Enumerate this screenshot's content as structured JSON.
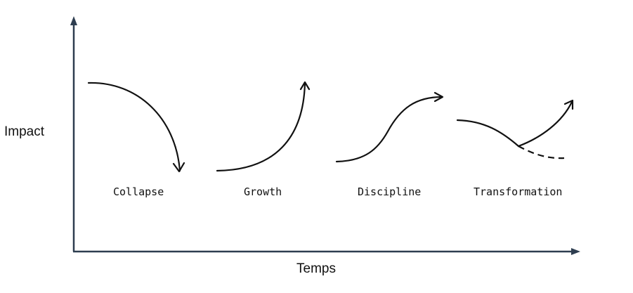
{
  "axes": {
    "y_label": "Impact",
    "x_label": "Temps",
    "color": "#2e3e50"
  },
  "scenarios": [
    {
      "label": "Collapse",
      "shape": "concave-down-falling"
    },
    {
      "label": "Growth",
      "shape": "exponential-rising"
    },
    {
      "label": "Discipline",
      "shape": "s-curve-rising"
    },
    {
      "label": "Transformation",
      "shape": "decline-then-rebound",
      "alternate_path": "dashed-continued-decline"
    }
  ],
  "stroke_color": "#111111"
}
